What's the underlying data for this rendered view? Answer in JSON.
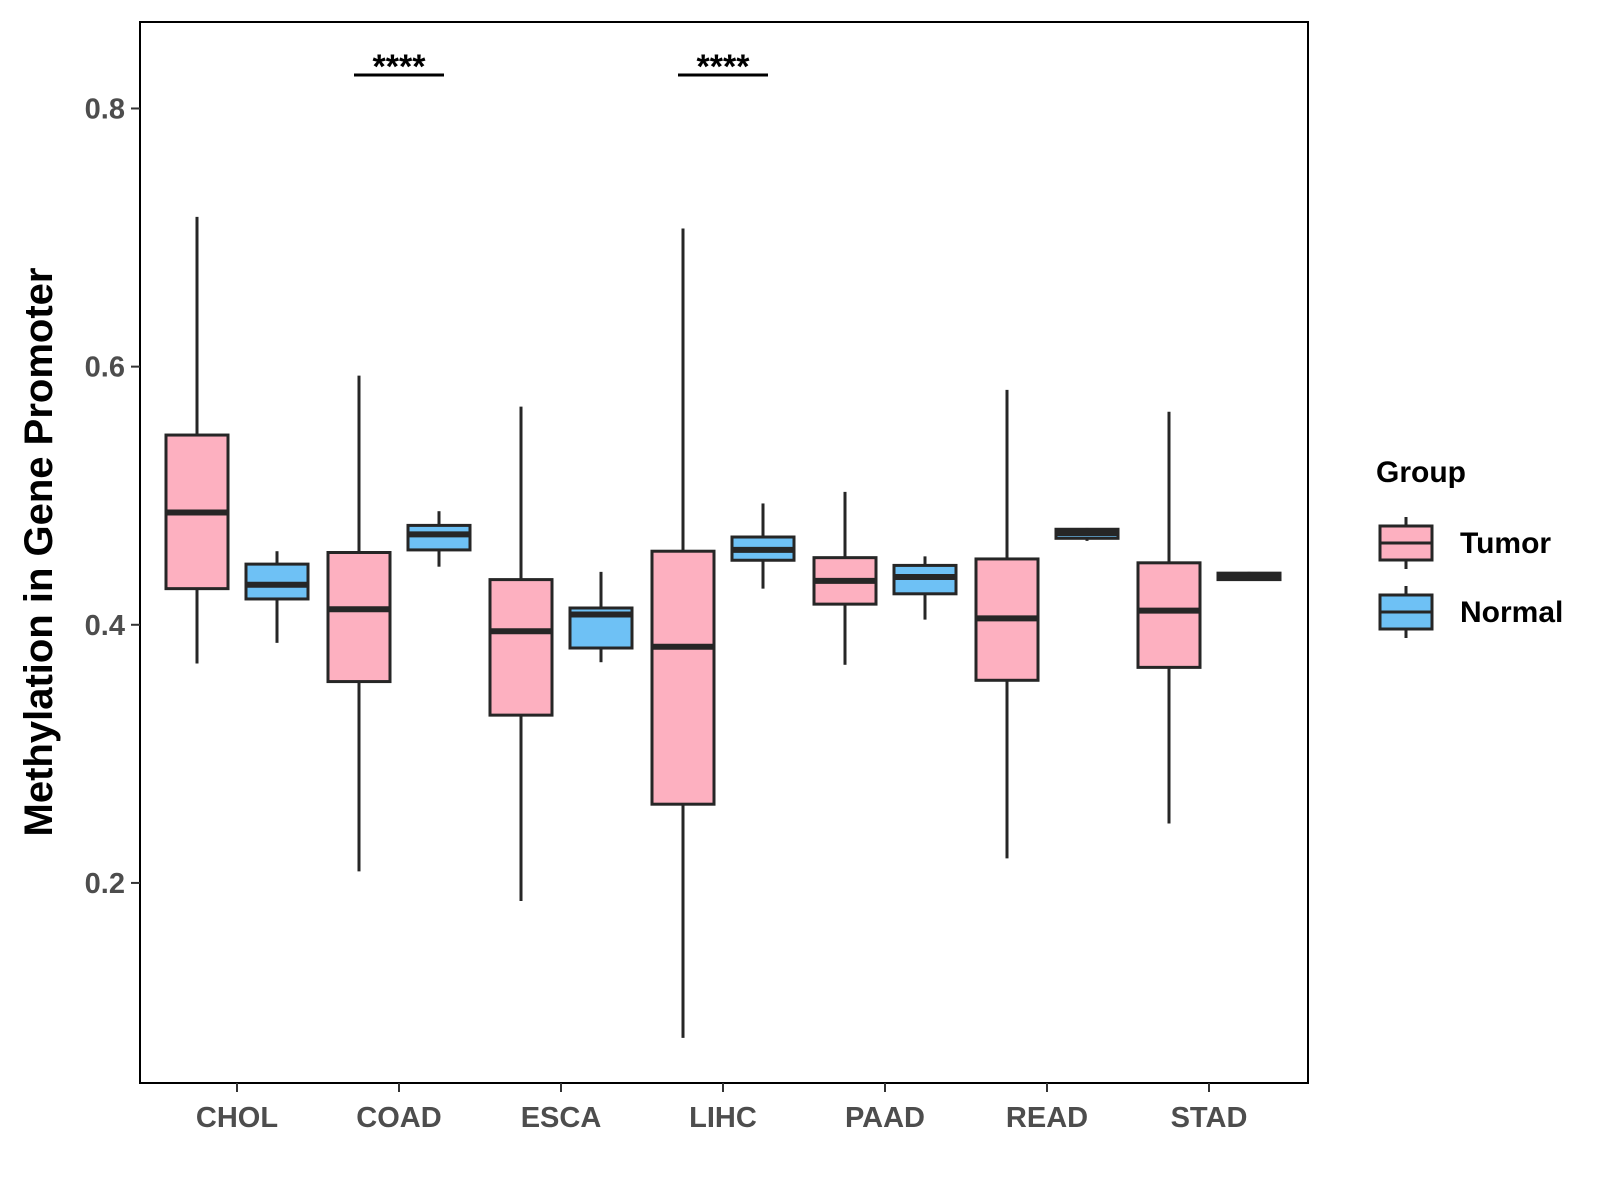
{
  "chart_data": {
    "type": "boxplot",
    "ylabel": "Methylation in Gene Promoter",
    "xlabel": "",
    "ylim": [
      0.045,
      0.867
    ],
    "yticks": [
      0.2,
      0.4,
      0.6,
      0.8
    ],
    "ytick_labels": [
      "0.2",
      "0.4",
      "0.6",
      "0.8"
    ],
    "categories": [
      "CHOL",
      "COAD",
      "ESCA",
      "LIHC",
      "PAAD",
      "READ",
      "STAD"
    ],
    "legend": {
      "title": "Group",
      "position": "right",
      "entries": [
        {
          "name": "Tumor",
          "color": "#FDB0C0"
        },
        {
          "name": "Normal",
          "color": "#6EC1F5"
        }
      ]
    },
    "series": [
      {
        "name": "Tumor",
        "color": "#FDB0C0",
        "boxes": [
          {
            "min": 0.37,
            "q1": 0.428,
            "median": 0.487,
            "q3": 0.547,
            "max": 0.716
          },
          {
            "min": 0.209,
            "q1": 0.356,
            "median": 0.412,
            "q3": 0.456,
            "max": 0.593
          },
          {
            "min": 0.186,
            "q1": 0.33,
            "median": 0.395,
            "q3": 0.435,
            "max": 0.569
          },
          {
            "min": 0.08,
            "q1": 0.261,
            "median": 0.383,
            "q3": 0.457,
            "max": 0.707
          },
          {
            "min": 0.369,
            "q1": 0.416,
            "median": 0.434,
            "q3": 0.452,
            "max": 0.503
          },
          {
            "min": 0.219,
            "q1": 0.357,
            "median": 0.405,
            "q3": 0.451,
            "max": 0.582
          },
          {
            "min": 0.246,
            "q1": 0.367,
            "median": 0.411,
            "q3": 0.448,
            "max": 0.565
          }
        ]
      },
      {
        "name": "Normal",
        "color": "#6EC1F5",
        "boxes": [
          {
            "min": 0.386,
            "q1": 0.42,
            "median": 0.431,
            "q3": 0.447,
            "max": 0.457
          },
          {
            "min": 0.445,
            "q1": 0.458,
            "median": 0.47,
            "q3": 0.477,
            "max": 0.488
          },
          {
            "min": 0.371,
            "q1": 0.382,
            "median": 0.408,
            "q3": 0.413,
            "max": 0.441
          },
          {
            "min": 0.428,
            "q1": 0.45,
            "median": 0.458,
            "q3": 0.468,
            "max": 0.494
          },
          {
            "min": 0.404,
            "q1": 0.424,
            "median": 0.437,
            "q3": 0.446,
            "max": 0.453
          },
          {
            "min": 0.465,
            "q1": 0.467,
            "median": 0.471,
            "q3": 0.474,
            "max": 0.475
          },
          {
            "min": 0.434,
            "q1": 0.435,
            "median": 0.437,
            "q3": 0.44,
            "max": 0.441
          }
        ]
      }
    ],
    "annotations": [
      {
        "category": "COAD",
        "text": "****"
      },
      {
        "category": "LIHC",
        "text": "****"
      }
    ]
  }
}
